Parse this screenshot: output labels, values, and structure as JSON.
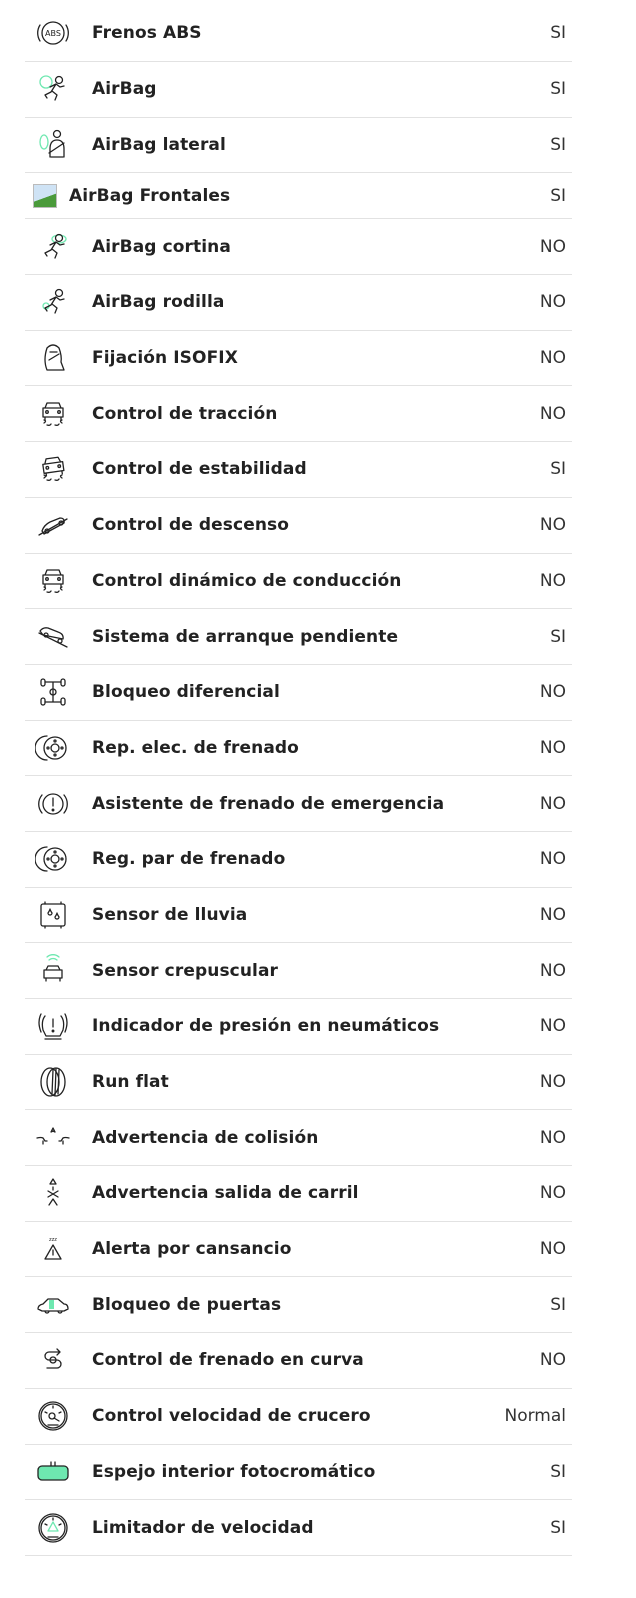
{
  "accent_color": "#6ee8b0",
  "features": [
    {
      "label": "Frenos ABS",
      "value": "SI",
      "icon": "abs-icon"
    },
    {
      "label": "AirBag",
      "value": "SI",
      "icon": "airbag-icon"
    },
    {
      "label": "AirBag lateral",
      "value": "SI",
      "icon": "airbag-side-icon"
    },
    {
      "label": "AirBag Frontales",
      "value": "SI",
      "icon": "broken-image-icon"
    },
    {
      "label": "AirBag cortina",
      "value": "NO",
      "icon": "airbag-curtain-icon"
    },
    {
      "label": "AirBag rodilla",
      "value": "NO",
      "icon": "airbag-knee-icon"
    },
    {
      "label": "Fijación ISOFIX",
      "value": "NO",
      "icon": "child-seat-icon"
    },
    {
      "label": "Control de tracción",
      "value": "NO",
      "icon": "traction-control-icon"
    },
    {
      "label": "Control de estabilidad",
      "value": "SI",
      "icon": "stability-control-icon"
    },
    {
      "label": "Control de descenso",
      "value": "NO",
      "icon": "hill-descent-icon"
    },
    {
      "label": "Control dinámico de conducción",
      "value": "NO",
      "icon": "dynamic-drive-icon"
    },
    {
      "label": "Sistema de arranque pendiente",
      "value": "SI",
      "icon": "hill-start-icon"
    },
    {
      "label": "Bloqueo diferencial",
      "value": "NO",
      "icon": "differential-lock-icon"
    },
    {
      "label": "Rep. elec. de frenado",
      "value": "NO",
      "icon": "brake-disc-icon"
    },
    {
      "label": "Asistente de frenado de emergencia",
      "value": "NO",
      "icon": "brake-warning-icon"
    },
    {
      "label": "Reg. par de frenado",
      "value": "NO",
      "icon": "brake-disc-icon"
    },
    {
      "label": "Sensor de lluvia",
      "value": "NO",
      "icon": "rain-sensor-icon"
    },
    {
      "label": "Sensor crepuscular",
      "value": "NO",
      "icon": "light-sensor-icon"
    },
    {
      "label": "Indicador de presión en neumáticos",
      "value": "NO",
      "icon": "tire-pressure-icon"
    },
    {
      "label": "Run flat",
      "value": "NO",
      "icon": "tire-icon"
    },
    {
      "label": "Advertencia de colisión",
      "value": "NO",
      "icon": "collision-warning-icon"
    },
    {
      "label": "Advertencia salida de carril",
      "value": "NO",
      "icon": "lane-departure-icon"
    },
    {
      "label": "Alerta por cansancio",
      "value": "NO",
      "icon": "fatigue-alert-icon"
    },
    {
      "label": "Bloqueo de puertas",
      "value": "SI",
      "icon": "door-lock-icon"
    },
    {
      "label": "Control de frenado en curva",
      "value": "NO",
      "icon": "curve-brake-icon"
    },
    {
      "label": "Control velocidad de crucero",
      "value": "Normal",
      "icon": "cruise-control-icon"
    },
    {
      "label": "Espejo interior fotocromático",
      "value": "SI",
      "icon": "mirror-icon"
    },
    {
      "label": "Limitador de velocidad",
      "value": "SI",
      "icon": "speed-limiter-icon"
    }
  ]
}
